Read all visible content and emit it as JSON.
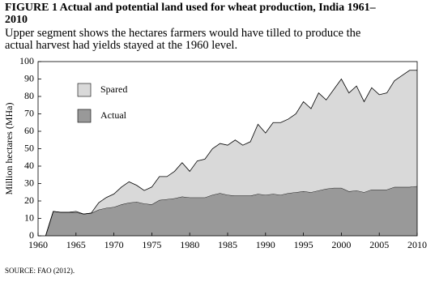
{
  "chart_data": {
    "type": "stacked-area",
    "title": "FIGURE 1   Actual and potential land used for wheat production, India 1961–2010",
    "subtitle": "Upper segment shows the hectares farmers would have tilled to produce the actual harvest had yields stayed at the 1960 level.",
    "y_label": "Million hectares (MHa)",
    "source": "SOURCE: FAO (2012).",
    "x": [
      1961,
      1962,
      1963,
      1964,
      1965,
      1966,
      1967,
      1968,
      1969,
      1970,
      1971,
      1972,
      1973,
      1974,
      1975,
      1976,
      1977,
      1978,
      1979,
      1980,
      1981,
      1982,
      1983,
      1984,
      1985,
      1986,
      1987,
      1988,
      1989,
      1990,
      1991,
      1992,
      1993,
      1994,
      1995,
      1996,
      1997,
      1998,
      1999,
      2000,
      2001,
      2002,
      2003,
      2004,
      2005,
      2006,
      2007,
      2008,
      2009,
      2010
    ],
    "series": [
      {
        "name": "Actual",
        "color": "#999999",
        "values": [
          0,
          14,
          13.5,
          13.5,
          13.5,
          12.5,
          13,
          15,
          16,
          16.5,
          18,
          19,
          19.5,
          18.5,
          18,
          20.5,
          21,
          21.5,
          22.5,
          22,
          22,
          22,
          23.5,
          24.5,
          23.5,
          23,
          23,
          23,
          24,
          23.5,
          24,
          23.5,
          24.5,
          25,
          25.5,
          25,
          26,
          27,
          27.5,
          27.5,
          25.5,
          26,
          25,
          26.5,
          26.5,
          26.5,
          28,
          28,
          28,
          28.5
        ]
      },
      {
        "name": "Spared",
        "color": "#d9d9d9",
        "values": [
          0,
          0,
          0,
          0,
          0.5,
          0,
          0,
          4,
          6,
          7.5,
          10,
          12,
          9.5,
          7.5,
          10,
          13.5,
          13,
          15.5,
          19.5,
          15,
          21,
          22,
          26.5,
          28.5,
          28.5,
          32,
          29,
          31,
          40,
          35.5,
          41,
          41.5,
          42.5,
          45,
          51.5,
          48,
          56,
          51,
          56.5,
          62.5,
          56.5,
          60,
          52,
          58.5,
          54.5,
          55.5,
          61,
          64,
          67,
          66.5
        ]
      }
    ],
    "xlim": [
      1960,
      2010
    ],
    "xticks": [
      1960,
      1965,
      1970,
      1975,
      1980,
      1985,
      1990,
      1995,
      2000,
      2005,
      2010
    ],
    "ylim": [
      0,
      100
    ],
    "yticks": [
      0,
      10,
      20,
      30,
      40,
      50,
      60,
      70,
      80,
      90,
      100
    ],
    "grid": false,
    "legend": "upper-left"
  }
}
